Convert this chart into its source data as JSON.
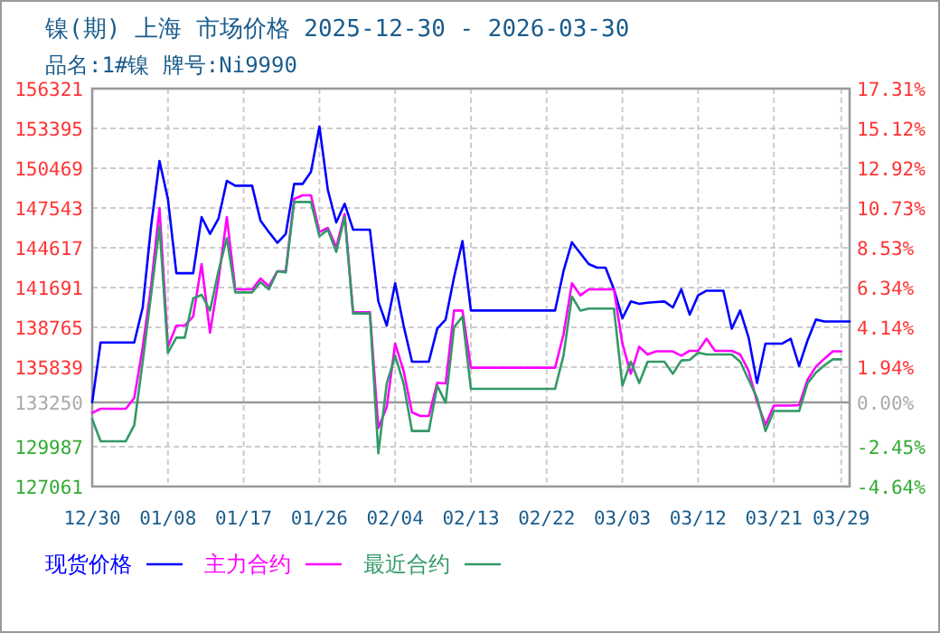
{
  "chart_data": {
    "type": "line",
    "title": "镍(期) 上海 市场价格 2025-12-30 - 2026-03-30",
    "subtitle": "品名:1#镍 牌号:Ni9990",
    "x": [
      "2025-12-30",
      "2025-12-31",
      "2026-01-01",
      "2026-01-02",
      "2026-01-03",
      "2026-01-04",
      "2026-01-05",
      "2026-01-06",
      "2026-01-07",
      "2026-01-08",
      "2026-01-09",
      "2026-01-10",
      "2026-01-11",
      "2026-01-12",
      "2026-01-13",
      "2026-01-14",
      "2026-01-15",
      "2026-01-16",
      "2026-01-17",
      "2026-01-18",
      "2026-01-19",
      "2026-01-20",
      "2026-01-21",
      "2026-01-22",
      "2026-01-23",
      "2026-01-24",
      "2026-01-25",
      "2026-01-26",
      "2026-01-27",
      "2026-01-28",
      "2026-01-29",
      "2026-01-30",
      "2026-01-31",
      "2026-02-01",
      "2026-02-02",
      "2026-02-03",
      "2026-02-04",
      "2026-02-05",
      "2026-02-06",
      "2026-02-07",
      "2026-02-08",
      "2026-02-09",
      "2026-02-10",
      "2026-02-11",
      "2026-02-12",
      "2026-02-13",
      "2026-02-14",
      "2026-02-15",
      "2026-02-16",
      "2026-02-17",
      "2026-02-18",
      "2026-02-19",
      "2026-02-20",
      "2026-02-21",
      "2026-02-22",
      "2026-02-23",
      "2026-02-24",
      "2026-02-25",
      "2026-02-26",
      "2026-02-27",
      "2026-02-28",
      "2026-03-01",
      "2026-03-02",
      "2026-03-03",
      "2026-03-04",
      "2026-03-05",
      "2026-03-06",
      "2026-03-07",
      "2026-03-08",
      "2026-03-09",
      "2026-03-10",
      "2026-03-11",
      "2026-03-12",
      "2026-03-13",
      "2026-03-14",
      "2026-03-15",
      "2026-03-16",
      "2026-03-17",
      "2026-03-18",
      "2026-03-19",
      "2026-03-20",
      "2026-03-21",
      "2026-03-22",
      "2026-03-23",
      "2026-03-24",
      "2026-03-25",
      "2026-03-26",
      "2026-03-27",
      "2026-03-28",
      "2026-03-29",
      "2026-03-30"
    ],
    "series": [
      {
        "name": "现货价格",
        "color": "#0000ff",
        "values": [
          133250,
          137650,
          137650,
          137650,
          137650,
          137650,
          140230,
          146210,
          151000,
          148200,
          142750,
          142750,
          142750,
          146880,
          145640,
          146750,
          149540,
          149180,
          149180,
          149180,
          146610,
          145770,
          144980,
          145640,
          149310,
          149310,
          150200,
          153530,
          148870,
          146480,
          147850,
          145950,
          145950,
          145950,
          140670,
          138900,
          142000,
          138900,
          136240,
          136240,
          136240,
          138670,
          139340,
          142450,
          145110,
          140000,
          140000,
          140000,
          140000,
          140000,
          140000,
          140000,
          140000,
          140000,
          140000,
          140000,
          142890,
          145020,
          144220,
          143420,
          143150,
          143150,
          141560,
          139430,
          140670,
          140490,
          140580,
          140630,
          140670,
          140230,
          141560,
          139700,
          141120,
          141460,
          141460,
          141460,
          138670,
          140000,
          138010,
          134680,
          137570,
          137570,
          137570,
          137930,
          135930,
          137800,
          139340,
          139200,
          139200,
          139200,
          139200
        ]
      },
      {
        "name": "主力合约",
        "color": "#ff00ff",
        "values": [
          132470,
          132780,
          132780,
          132780,
          132780,
          133580,
          137300,
          141820,
          147540,
          137340,
          138900,
          138900,
          139560,
          143420,
          138370,
          142220,
          146880,
          141560,
          141560,
          141560,
          142360,
          141780,
          142890,
          142890,
          148210,
          148470,
          148470,
          145770,
          146080,
          144660,
          147100,
          139870,
          139870,
          139870,
          131360,
          132910,
          137570,
          135570,
          132510,
          132250,
          132250,
          134680,
          134640,
          140000,
          140000,
          135800,
          135800,
          135800,
          135800,
          135800,
          135800,
          135800,
          135800,
          135800,
          135800,
          135800,
          138230,
          142000,
          141120,
          141560,
          141560,
          141560,
          141560,
          137570,
          135350,
          137340,
          136770,
          137000,
          137000,
          137000,
          136680,
          137040,
          137040,
          137930,
          137040,
          137040,
          137040,
          136770,
          135570,
          133310,
          131580,
          133010,
          133010,
          133010,
          133050,
          134910,
          135880,
          136460,
          137000,
          137000,
          null
        ]
      },
      {
        "name": "最近合约",
        "color": "#339966",
        "values": [
          132020,
          130390,
          130390,
          130390,
          130390,
          131580,
          136240,
          141160,
          146210,
          136900,
          138010,
          138010,
          140890,
          141160,
          140000,
          142890,
          145320,
          141330,
          141330,
          141330,
          142090,
          141560,
          142890,
          142800,
          147980,
          147980,
          147980,
          145460,
          145950,
          144310,
          146880,
          139790,
          139790,
          139790,
          129500,
          134640,
          136680,
          134640,
          131140,
          131140,
          131140,
          134470,
          133220,
          138770,
          139560,
          134240,
          134240,
          134240,
          134240,
          134240,
          134240,
          134240,
          134240,
          134240,
          134240,
          134240,
          136680,
          141030,
          140000,
          140140,
          140140,
          140140,
          140140,
          134470,
          136240,
          134680,
          136240,
          136240,
          136240,
          135350,
          136330,
          136370,
          136900,
          136770,
          136770,
          136770,
          136770,
          136240,
          134910,
          133580,
          131140,
          132610,
          132610,
          132610,
          132610,
          134640,
          135440,
          135970,
          136410,
          136410,
          null
        ]
      }
    ],
    "xlim": [
      "2025-12-30",
      "2026-03-30"
    ],
    "xticks": [
      {
        "value": "2025-12-30",
        "label": "12/30"
      },
      {
        "value": "2026-01-08",
        "label": "01/08"
      },
      {
        "value": "2026-01-17",
        "label": "01/17"
      },
      {
        "value": "2026-01-26",
        "label": "01/26"
      },
      {
        "value": "2026-02-04",
        "label": "02/04"
      },
      {
        "value": "2026-02-13",
        "label": "02/13"
      },
      {
        "value": "2026-02-22",
        "label": "02/22"
      },
      {
        "value": "2026-03-03",
        "label": "03/03"
      },
      {
        "value": "2026-03-12",
        "label": "03/12"
      },
      {
        "value": "2026-03-21",
        "label": "03/21"
      },
      {
        "value": "2026-03-29",
        "label": "03/29"
      }
    ],
    "ylim": [
      127061,
      156321
    ],
    "yticks": [
      127061,
      129987,
      133250,
      135839,
      138765,
      141691,
      144617,
      147543,
      150469,
      153395,
      156321
    ],
    "y2lim": [
      -4.64,
      17.31
    ],
    "y2ticks": [
      {
        "value": -4.64,
        "label": "-4.64%"
      },
      {
        "value": -2.45,
        "label": "-2.45%"
      },
      {
        "value": 0,
        "label": "0.00%"
      },
      {
        "value": 1.94,
        "label": "1.94%"
      },
      {
        "value": 4.14,
        "label": "4.14%"
      },
      {
        "value": 6.34,
        "label": "6.34%"
      },
      {
        "value": 8.53,
        "label": "8.53%"
      },
      {
        "value": 10.73,
        "label": "10.73%"
      },
      {
        "value": 12.92,
        "label": "12.92%"
      },
      {
        "value": 15.12,
        "label": "15.12%"
      },
      {
        "value": 17.31,
        "label": "17.31%"
      }
    ],
    "ref_lines": [
      {
        "axis": "y",
        "value": 133250,
        "color": "#999999"
      }
    ],
    "grid": true,
    "legend": "bottom"
  }
}
